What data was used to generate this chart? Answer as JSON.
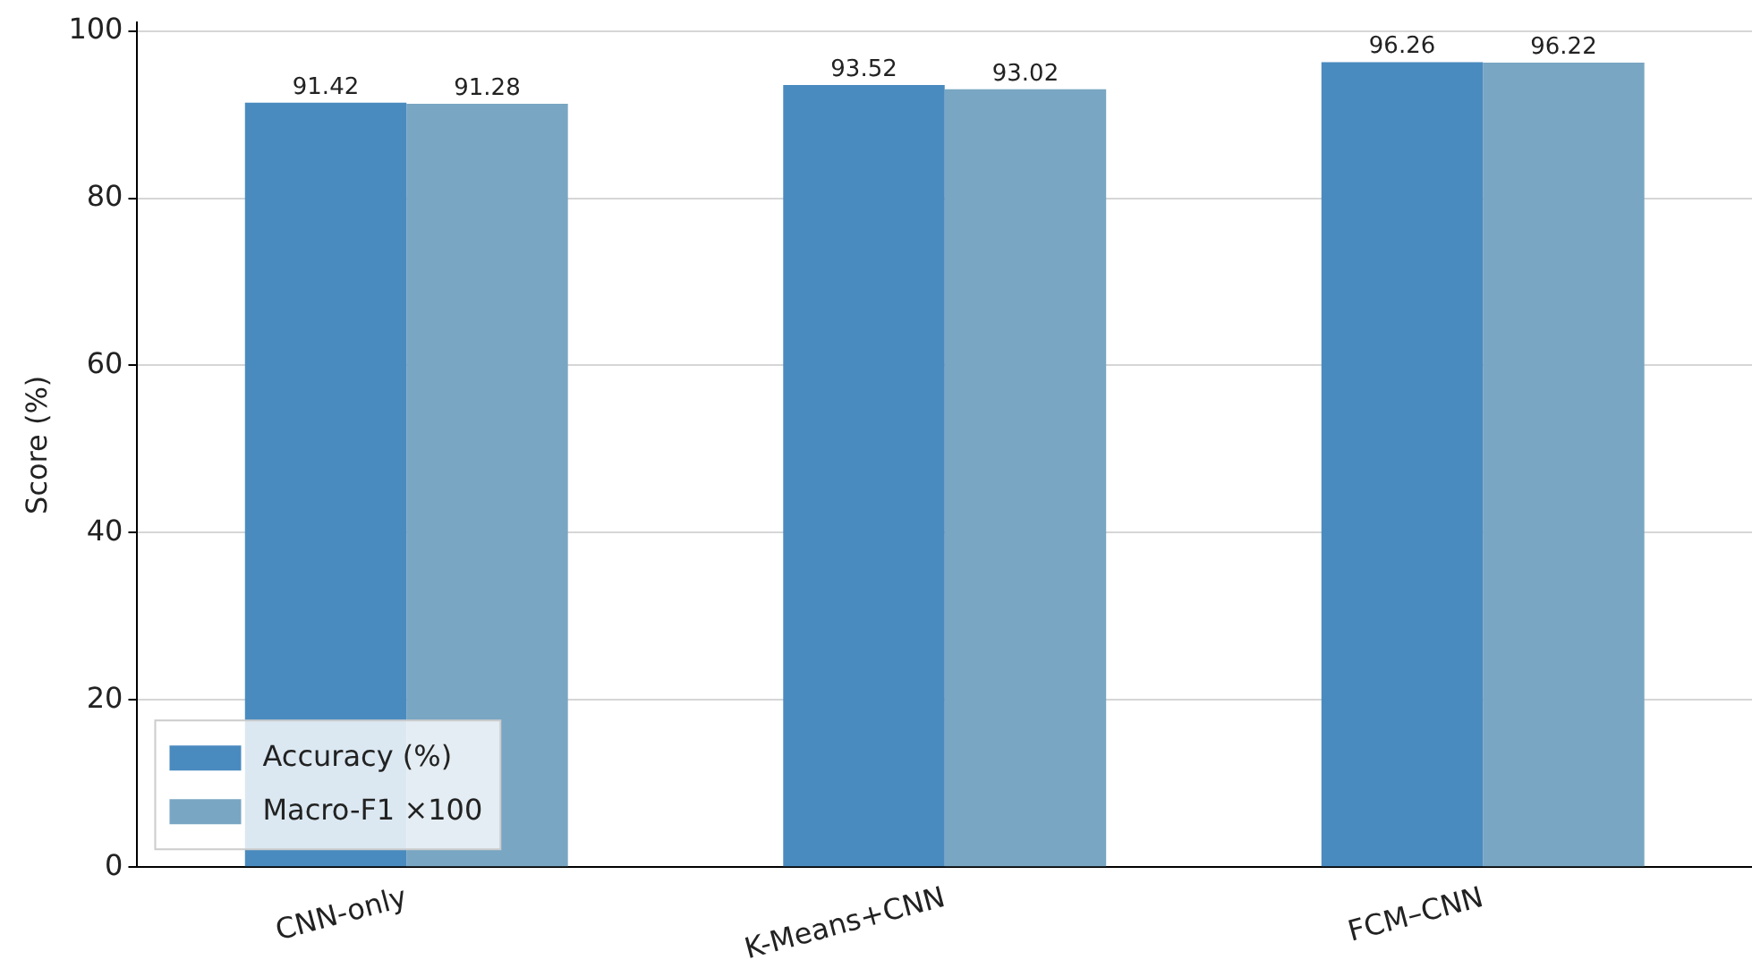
{
  "chart_data": {
    "type": "bar",
    "ylabel": "Score (%)",
    "categories": [
      "CNN-only",
      "K-Means+CNN",
      "FCM–CNN"
    ],
    "series": [
      {
        "name": "Accuracy (%)",
        "color": "#4a8bbf",
        "values": [
          91.42,
          93.52,
          96.26
        ]
      },
      {
        "name": "Macro-F1 ×100",
        "color": "#79a6c2",
        "values": [
          91.28,
          93.02,
          96.22
        ]
      }
    ],
    "ylim": [
      0,
      101
    ],
    "yticks": [
      0,
      20,
      40,
      60,
      80,
      100
    ],
    "grid": "y",
    "legend": "bottom left",
    "data_labels": true
  }
}
